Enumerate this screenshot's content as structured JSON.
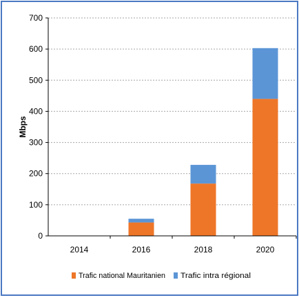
{
  "chart_data": {
    "type": "bar",
    "stacked": true,
    "categories": [
      "2014",
      "2016",
      "2018",
      "2020"
    ],
    "series": [
      {
        "name": "Trafic national Mauritanien",
        "values": [
          0,
          43,
          168,
          440
        ],
        "color": "#ee7628"
      },
      {
        "name": "Trafic intra régional",
        "values": [
          0,
          12,
          60,
          163
        ],
        "color": "#5b95d6"
      }
    ],
    "title": "",
    "xlabel": "",
    "ylabel": "Mbps",
    "ylim": [
      0,
      700
    ],
    "yticks": [
      "0",
      "100",
      "200",
      "300",
      "400",
      "500",
      "600",
      "700"
    ],
    "grid": true,
    "legend": "bottom",
    "colors": {
      "border": "#4a78c2",
      "grid": "#a6a6a6",
      "axis": "#000000"
    }
  }
}
